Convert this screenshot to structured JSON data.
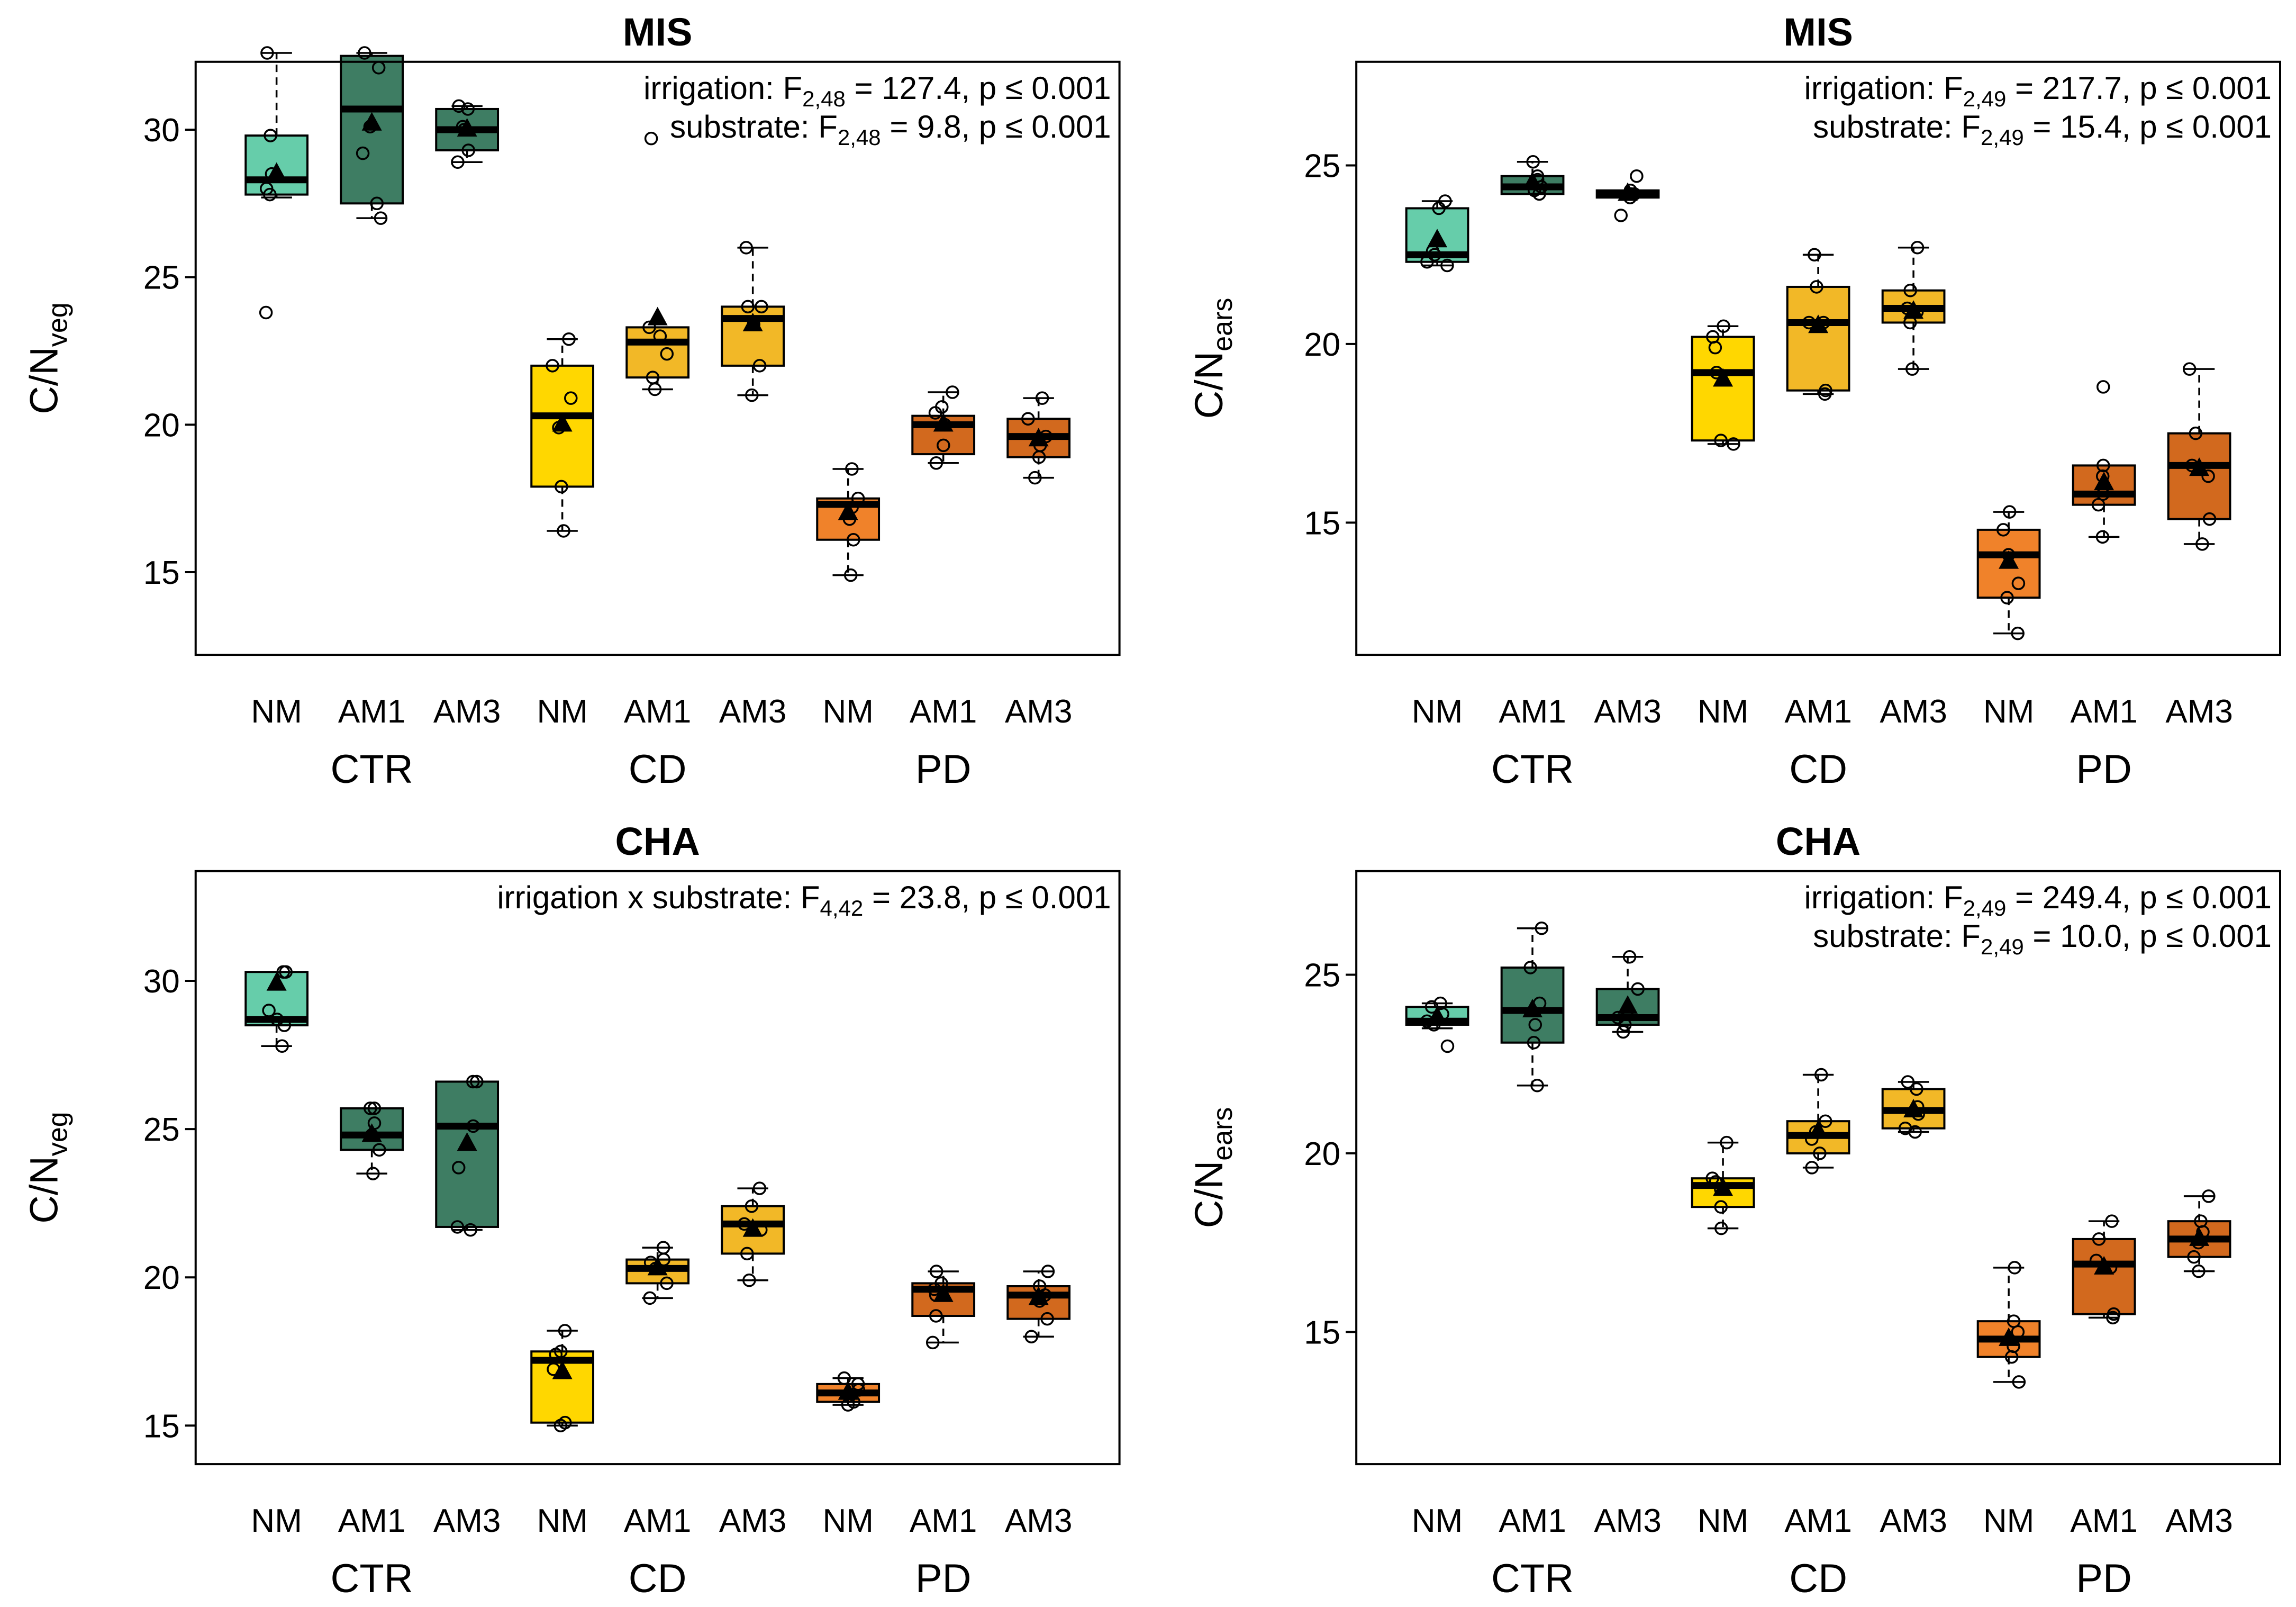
{
  "figure": {
    "tick_labels": [
      "NM",
      "AM1",
      "AM3",
      "NM",
      "AM1",
      "AM3",
      "NM",
      "AM1",
      "AM3"
    ],
    "group_labels": [
      "CTR",
      "CD",
      "PD"
    ]
  },
  "chart_data": [
    {
      "type": "boxplot",
      "title": "MIS",
      "ylabel_main": "C/N",
      "ylabel_sub": "veg",
      "ylim": [
        12.2,
        32.3
      ],
      "yticks": [
        15,
        20,
        25,
        30
      ],
      "stats": [
        {
          "pre": "irrigation: F",
          "sub": "2,48",
          "post": " = 127.4, p ≤ 0.001"
        },
        {
          "pre": "substrate: F",
          "sub": "2,48",
          "post": " = 9.8, p ≤ 0.001"
        }
      ],
      "boxes": [
        {
          "q1": 27.8,
          "median": 28.3,
          "q3": 29.8,
          "wlo": 27.7,
          "whi": 32.6,
          "mean": 28.5,
          "color": "#66CDAA",
          "points": [
            23.8,
            27.8,
            28.0,
            28.5,
            29.8,
            32.6
          ]
        },
        {
          "q1": 27.5,
          "median": 30.7,
          "q3": 32.5,
          "wlo": 27.0,
          "whi": 32.6,
          "mean": 30.2,
          "color": "#3E7D63",
          "points": [
            27.0,
            27.5,
            29.2,
            30.1,
            32.1,
            32.6
          ]
        },
        {
          "q1": 29.3,
          "median": 30.0,
          "q3": 30.7,
          "wlo": 28.9,
          "whi": 30.8,
          "mean": 30.0,
          "color": "#3E7D63",
          "points": [
            28.9,
            29.3,
            30.0,
            30.1,
            30.7,
            30.8
          ]
        },
        {
          "q1": 17.9,
          "median": 20.3,
          "q3": 22.0,
          "wlo": 16.4,
          "whi": 22.9,
          "mean": 20.0,
          "color": "#FFD700",
          "points": [
            16.4,
            17.9,
            19.9,
            20.9,
            22.0,
            22.9
          ]
        },
        {
          "q1": 21.6,
          "median": 22.8,
          "q3": 23.3,
          "wlo": 21.2,
          "whi": 23.3,
          "mean": 23.6,
          "color": "#F2B827",
          "points": [
            21.2,
            21.6,
            22.4,
            23.0,
            23.3,
            29.7
          ]
        },
        {
          "q1": 22.0,
          "median": 23.6,
          "q3": 24.0,
          "wlo": 21.0,
          "whi": 26.0,
          "mean": 23.4,
          "color": "#F2B827",
          "points": [
            21.0,
            22.0,
            23.4,
            24.0,
            24.0,
            26.0
          ]
        },
        {
          "q1": 16.1,
          "median": 17.3,
          "q3": 17.5,
          "wlo": 14.9,
          "whi": 18.5,
          "mean": 17.0,
          "color": "#F0822A",
          "points": [
            14.9,
            16.1,
            16.8,
            17.2,
            17.5,
            18.5
          ]
        },
        {
          "q1": 19.0,
          "median": 20.0,
          "q3": 20.3,
          "wlo": 18.7,
          "whi": 21.1,
          "mean": 20.0,
          "color": "#D2691E",
          "points": [
            18.7,
            19.3,
            20.0,
            20.4,
            20.6,
            21.1
          ]
        },
        {
          "q1": 18.9,
          "median": 19.6,
          "q3": 20.2,
          "wlo": 18.2,
          "whi": 20.9,
          "mean": 19.5,
          "color": "#D2691E",
          "points": [
            18.2,
            18.9,
            19.3,
            19.6,
            20.2,
            20.9
          ]
        }
      ]
    },
    {
      "type": "boxplot",
      "title": "MIS",
      "ylabel_main": "C/N",
      "ylabel_sub": "ears",
      "ylim": [
        11.3,
        27.9
      ],
      "yticks": [
        15,
        20,
        25
      ],
      "stats": [
        {
          "pre": "irrigation: F",
          "sub": "2,49",
          "post": " = 217.7, p ≤ 0.001"
        },
        {
          "pre": "substrate: F",
          "sub": "2,49",
          "post": " = 15.4, p ≤ 0.001"
        }
      ],
      "boxes": [
        {
          "q1": 22.3,
          "median": 22.5,
          "q3": 23.8,
          "wlo": 22.2,
          "whi": 24.0,
          "mean": 22.9,
          "color": "#66CDAA",
          "points": [
            22.2,
            22.3,
            22.5,
            22.6,
            23.8,
            24.0
          ]
        },
        {
          "q1": 24.2,
          "median": 24.4,
          "q3": 24.7,
          "wlo": 24.2,
          "whi": 25.1,
          "mean": 24.5,
          "color": "#3E7D63",
          "points": [
            24.2,
            24.3,
            24.4,
            24.6,
            24.7,
            25.1
          ]
        },
        {
          "q1": 24.1,
          "median": 24.2,
          "q3": 24.3,
          "wlo": 24.1,
          "whi": 24.3,
          "mean": 24.2,
          "color": "#3E7D63",
          "points": [
            23.6,
            24.1,
            24.2,
            24.2,
            24.3,
            24.7
          ]
        },
        {
          "q1": 17.3,
          "median": 19.2,
          "q3": 20.2,
          "wlo": 17.2,
          "whi": 20.5,
          "mean": 19.0,
          "color": "#FFD700",
          "points": [
            17.2,
            17.3,
            19.2,
            19.9,
            20.2,
            20.5
          ]
        },
        {
          "q1": 18.7,
          "median": 20.6,
          "q3": 21.6,
          "wlo": 18.6,
          "whi": 22.5,
          "mean": 20.5,
          "color": "#F2B827",
          "points": [
            18.6,
            18.7,
            20.6,
            20.6,
            21.6,
            22.5
          ]
        },
        {
          "q1": 20.6,
          "median": 21.0,
          "q3": 21.5,
          "wlo": 19.3,
          "whi": 22.7,
          "mean": 20.9,
          "color": "#F2B827",
          "points": [
            19.3,
            20.6,
            20.9,
            21.0,
            21.5,
            22.7
          ]
        },
        {
          "q1": 12.9,
          "median": 14.1,
          "q3": 14.8,
          "wlo": 11.9,
          "whi": 15.3,
          "mean": 13.9,
          "color": "#F0822A",
          "points": [
            11.9,
            12.9,
            13.3,
            14.1,
            14.8,
            15.3
          ]
        },
        {
          "q1": 15.5,
          "median": 15.8,
          "q3": 16.6,
          "wlo": 14.6,
          "whi": 16.6,
          "mean": 16.1,
          "color": "#D2691E",
          "points": [
            14.6,
            15.5,
            15.8,
            16.3,
            16.6,
            18.8
          ]
        },
        {
          "q1": 15.1,
          "median": 16.6,
          "q3": 17.5,
          "wlo": 14.4,
          "whi": 19.3,
          "mean": 16.5,
          "color": "#D2691E",
          "points": [
            14.4,
            15.1,
            16.3,
            16.6,
            17.5,
            19.3
          ]
        }
      ]
    },
    {
      "type": "boxplot",
      "title": "CHA",
      "ylabel_main": "C/N",
      "ylabel_sub": "veg",
      "ylim": [
        13.7,
        33.7
      ],
      "yticks": [
        15,
        20,
        25,
        30
      ],
      "stats": [
        {
          "pre": "irrigation x substrate: F",
          "sub": "4,42",
          "post": " = 23.8, p ≤ 0.001"
        }
      ],
      "boxes": [
        {
          "q1": 28.5,
          "median": 28.7,
          "q3": 30.3,
          "wlo": 27.8,
          "whi": 30.3,
          "mean": 29.9,
          "color": "#66CDAA",
          "points": [
            27.8,
            28.5,
            28.7,
            29.0,
            30.3,
            30.3
          ]
        },
        {
          "q1": 24.3,
          "median": 24.8,
          "q3": 25.7,
          "wlo": 23.5,
          "whi": 25.7,
          "mean": 24.8,
          "color": "#3E7D63",
          "points": [
            23.5,
            24.3,
            24.8,
            25.2,
            25.7,
            25.7
          ]
        },
        {
          "q1": 21.7,
          "median": 25.1,
          "q3": 26.6,
          "wlo": 21.6,
          "whi": 26.6,
          "mean": 24.5,
          "color": "#3E7D63",
          "points": [
            21.6,
            21.7,
            23.7,
            25.1,
            26.6,
            26.6
          ]
        },
        {
          "q1": 15.1,
          "median": 17.2,
          "q3": 17.5,
          "wlo": 15.0,
          "whi": 18.2,
          "mean": 16.8,
          "color": "#FFD700",
          "points": [
            15.0,
            15.1,
            16.9,
            17.4,
            17.5,
            18.2
          ]
        },
        {
          "q1": 19.8,
          "median": 20.3,
          "q3": 20.6,
          "wlo": 19.3,
          "whi": 21.0,
          "mean": 20.3,
          "color": "#F2B827",
          "points": [
            19.3,
            19.8,
            20.3,
            20.5,
            20.6,
            21.0
          ]
        },
        {
          "q1": 20.8,
          "median": 21.8,
          "q3": 22.4,
          "wlo": 19.9,
          "whi": 23.0,
          "mean": 21.6,
          "color": "#F2B827",
          "points": [
            19.9,
            20.8,
            21.6,
            21.8,
            22.4,
            23.0
          ]
        },
        {
          "q1": 15.8,
          "median": 16.1,
          "q3": 16.4,
          "wlo": 15.7,
          "whi": 16.6,
          "mean": 16.1,
          "color": "#F0822A",
          "points": [
            15.7,
            15.8,
            16.0,
            16.2,
            16.4,
            16.6
          ]
        },
        {
          "q1": 18.7,
          "median": 19.6,
          "q3": 19.8,
          "wlo": 17.8,
          "whi": 20.2,
          "mean": 19.4,
          "color": "#D2691E",
          "points": [
            17.8,
            18.7,
            19.4,
            19.6,
            19.8,
            20.2
          ]
        },
        {
          "q1": 18.6,
          "median": 19.4,
          "q3": 19.7,
          "wlo": 18.0,
          "whi": 20.2,
          "mean": 19.3,
          "color": "#D2691E",
          "points": [
            18.0,
            18.6,
            19.2,
            19.4,
            19.7,
            20.2
          ]
        }
      ]
    },
    {
      "type": "boxplot",
      "title": "CHA",
      "ylabel_main": "C/N",
      "ylabel_sub": "ears",
      "ylim": [
        11.3,
        27.9
      ],
      "yticks": [
        15,
        20,
        25
      ],
      "stats": [
        {
          "pre": "irrigation: F",
          "sub": "2,49",
          "post": " = 249.4, p ≤ 0.001"
        },
        {
          "pre": "substrate: F",
          "sub": "2,49",
          "post": " = 10.0, p ≤ 0.001"
        }
      ],
      "boxes": [
        {
          "q1": 23.6,
          "median": 23.7,
          "q3": 24.1,
          "wlo": 23.5,
          "whi": 24.2,
          "mean": 23.8,
          "color": "#66CDAA",
          "points": [
            23.0,
            23.6,
            23.7,
            23.9,
            24.1,
            24.2
          ]
        },
        {
          "q1": 23.1,
          "median": 24.0,
          "q3": 25.2,
          "wlo": 21.9,
          "whi": 26.3,
          "mean": 24.0,
          "color": "#3E7D63",
          "points": [
            21.9,
            23.1,
            23.6,
            24.2,
            25.2,
            26.3
          ]
        },
        {
          "q1": 23.6,
          "median": 23.8,
          "q3": 24.6,
          "wlo": 23.4,
          "whi": 25.5,
          "mean": 24.1,
          "color": "#3E7D63",
          "points": [
            23.4,
            23.6,
            23.8,
            24.0,
            24.6,
            25.5
          ]
        },
        {
          "q1": 18.5,
          "median": 19.1,
          "q3": 19.3,
          "wlo": 17.9,
          "whi": 20.3,
          "mean": 19.0,
          "color": "#FFD700",
          "points": [
            17.9,
            18.5,
            19.0,
            19.2,
            19.3,
            20.3
          ]
        },
        {
          "q1": 20.0,
          "median": 20.5,
          "q3": 20.9,
          "wlo": 19.6,
          "whi": 22.2,
          "mean": 20.6,
          "color": "#F2B827",
          "points": [
            19.6,
            20.0,
            20.4,
            20.6,
            20.9,
            22.2
          ]
        },
        {
          "q1": 20.7,
          "median": 21.2,
          "q3": 21.8,
          "wlo": 20.6,
          "whi": 22.0,
          "mean": 21.2,
          "color": "#F2B827",
          "points": [
            20.6,
            20.7,
            21.1,
            21.3,
            21.8,
            22.0
          ]
        },
        {
          "q1": 14.3,
          "median": 14.8,
          "q3": 15.3,
          "wlo": 13.6,
          "whi": 16.8,
          "mean": 14.8,
          "color": "#F0822A",
          "points": [
            13.6,
            14.3,
            14.6,
            15.0,
            15.3,
            16.8
          ]
        },
        {
          "q1": 15.5,
          "median": 16.9,
          "q3": 17.6,
          "wlo": 15.4,
          "whi": 18.1,
          "mean": 16.8,
          "color": "#D2691E",
          "points": [
            15.4,
            15.5,
            16.8,
            17.0,
            17.6,
            18.1
          ]
        },
        {
          "q1": 17.1,
          "median": 17.6,
          "q3": 18.1,
          "wlo": 16.7,
          "whi": 18.8,
          "mean": 17.6,
          "color": "#D2691E",
          "points": [
            16.7,
            17.1,
            17.5,
            17.8,
            18.1,
            18.8
          ]
        }
      ]
    }
  ]
}
